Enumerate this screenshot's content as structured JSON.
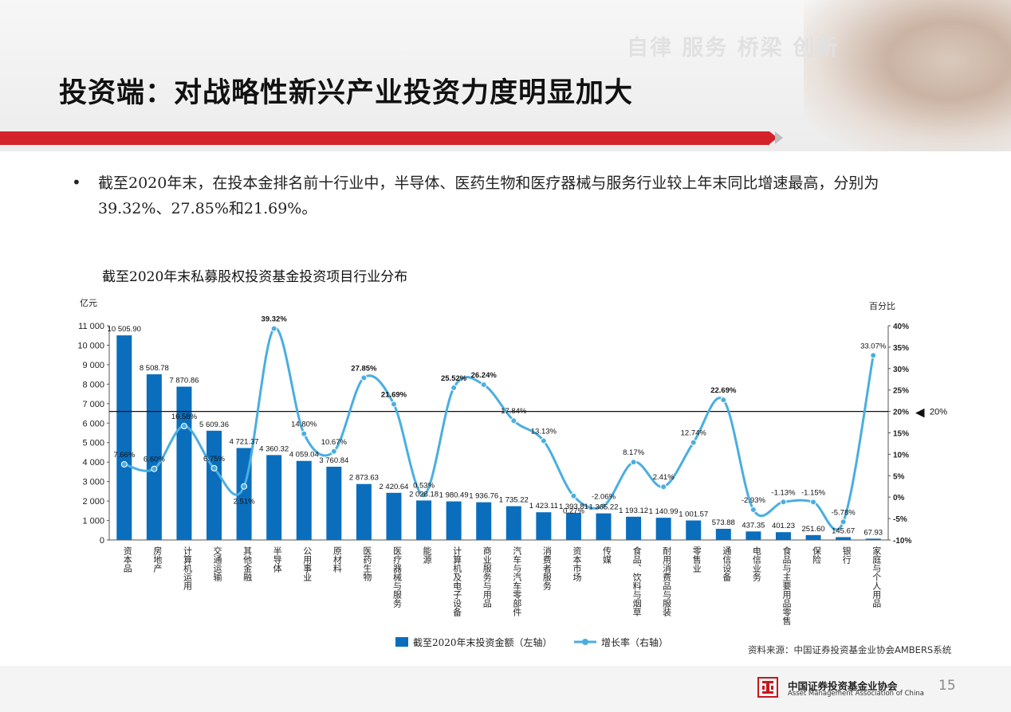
{
  "header": {
    "slogan": "自律  服务  桥梁  创新",
    "title": "投资端：对战略性新兴产业投资力度明显加大"
  },
  "bullet": {
    "marker": "•",
    "text": "截至2020年末，在投本金排名前十行业中，半导体、医药生物和医疗器械与服务行业较上年末同比增速最高，分别为39.32%、27.85%和21.69%。"
  },
  "chart_title": "截至2020年末私募股权投资基金投资项目行业分布",
  "chart_data": {
    "type": "bar",
    "left_unit": "亿元",
    "right_unit": "百分比",
    "categories": [
      "资本品",
      "房地产",
      "计算机运用",
      "交通运输",
      "其他金融",
      "半导体",
      "公用事业",
      "原材料",
      "医药生物",
      "医疗器械与服务",
      "能源",
      "计算机及电子设备",
      "商业服务与用品",
      "汽车与汽车零部件",
      "消费者服务",
      "资本市场",
      "传媒",
      "食品、饮料与烟草",
      "耐用消费品与服装",
      "零售业",
      "通信设备",
      "电信业务",
      "食品与主要用品零售",
      "保险",
      "银行",
      "家庭与个人用品"
    ],
    "series": [
      {
        "name": "截至2020年末投资金额（左轴）",
        "axis": "left",
        "color": "#0a6ebd",
        "values": [
          10505.9,
          8508.78,
          7870.86,
          5609.36,
          4721.37,
          4360.32,
          4059.04,
          3760.84,
          2873.63,
          2420.64,
          2028.18,
          1980.49,
          1936.76,
          1735.22,
          1423.11,
          1393.81,
          1365.22,
          1193.12,
          1140.99,
          1001.57,
          573.88,
          437.35,
          401.23,
          251.6,
          145.67,
          67.93
        ],
        "labels": [
          "10 505.90",
          "8 508.78",
          "7 870.86",
          "5 609.36",
          "4 721.37",
          "4 360.32",
          "4 059.04",
          "3 760.84",
          "2 873.63",
          "2 420.64",
          "2 028.18",
          "1 980.49",
          "1 936.76",
          "1 735.22",
          "1 423.11",
          "1 393.81",
          "1 365.22",
          "1 193.12",
          "1 140.99",
          "1 001.57",
          "573.88",
          "437.35",
          "401.23",
          "251.60",
          "145.67",
          "67.93"
        ]
      },
      {
        "name": "增长率（右轴）",
        "axis": "right",
        "color": "#4aaee0",
        "values": [
          7.66,
          6.6,
          16.58,
          6.75,
          2.51,
          39.32,
          14.8,
          10.67,
          27.85,
          21.69,
          0.53,
          25.52,
          26.24,
          17.84,
          13.13,
          0.27,
          -2.06,
          8.17,
          2.41,
          12.74,
          22.69,
          -2.93,
          -1.13,
          -1.15,
          -5.78,
          33.07
        ],
        "labels": [
          "7.66%",
          "6.60%",
          "16.58%",
          "6.75%",
          "2.51%",
          "39.32%",
          "14.80%",
          "10.67%",
          "27.85%",
          "21.69%",
          "0.53%",
          "25.52%",
          "26.24%",
          "17.84%",
          "13.13%",
          "0.27%",
          "-2.06%",
          "8.17%",
          "2.41%",
          "12.74%",
          "22.69%",
          "-2.93%",
          "-1.13%",
          "-1.15%",
          "-5.78%",
          "33.07%"
        ]
      }
    ],
    "left_axis": {
      "min": 0,
      "max": 11000,
      "step": 1000,
      "tick_labels": [
        "0",
        "1 000",
        "2 000",
        "3 000",
        "4 000",
        "5 000",
        "6 000",
        "7 000",
        "8 000",
        "9 000",
        "10 000",
        "11 000"
      ]
    },
    "right_axis": {
      "min": -10,
      "max": 40,
      "step": 5,
      "tick_labels": [
        "-10%",
        "-5%",
        "0%",
        "5%",
        "10%",
        "15%",
        "20%",
        "25%",
        "30%",
        "35%",
        "40%"
      ]
    },
    "reference_line": {
      "value": 20,
      "axis": "right",
      "label": "20%",
      "marker": "◀"
    },
    "grid": false,
    "legend_position": "bottom"
  },
  "source_text": "资料来源：中国证券投资基金业协会AMBERS系统",
  "footer": {
    "org_cn": "中国证券投资基金业协会",
    "org_en": "Asset Management Association of China",
    "page_number": "15"
  },
  "colors": {
    "accent_red": "#d3222a",
    "bar_blue": "#0a6ebd",
    "line_blue": "#4aaee0"
  }
}
